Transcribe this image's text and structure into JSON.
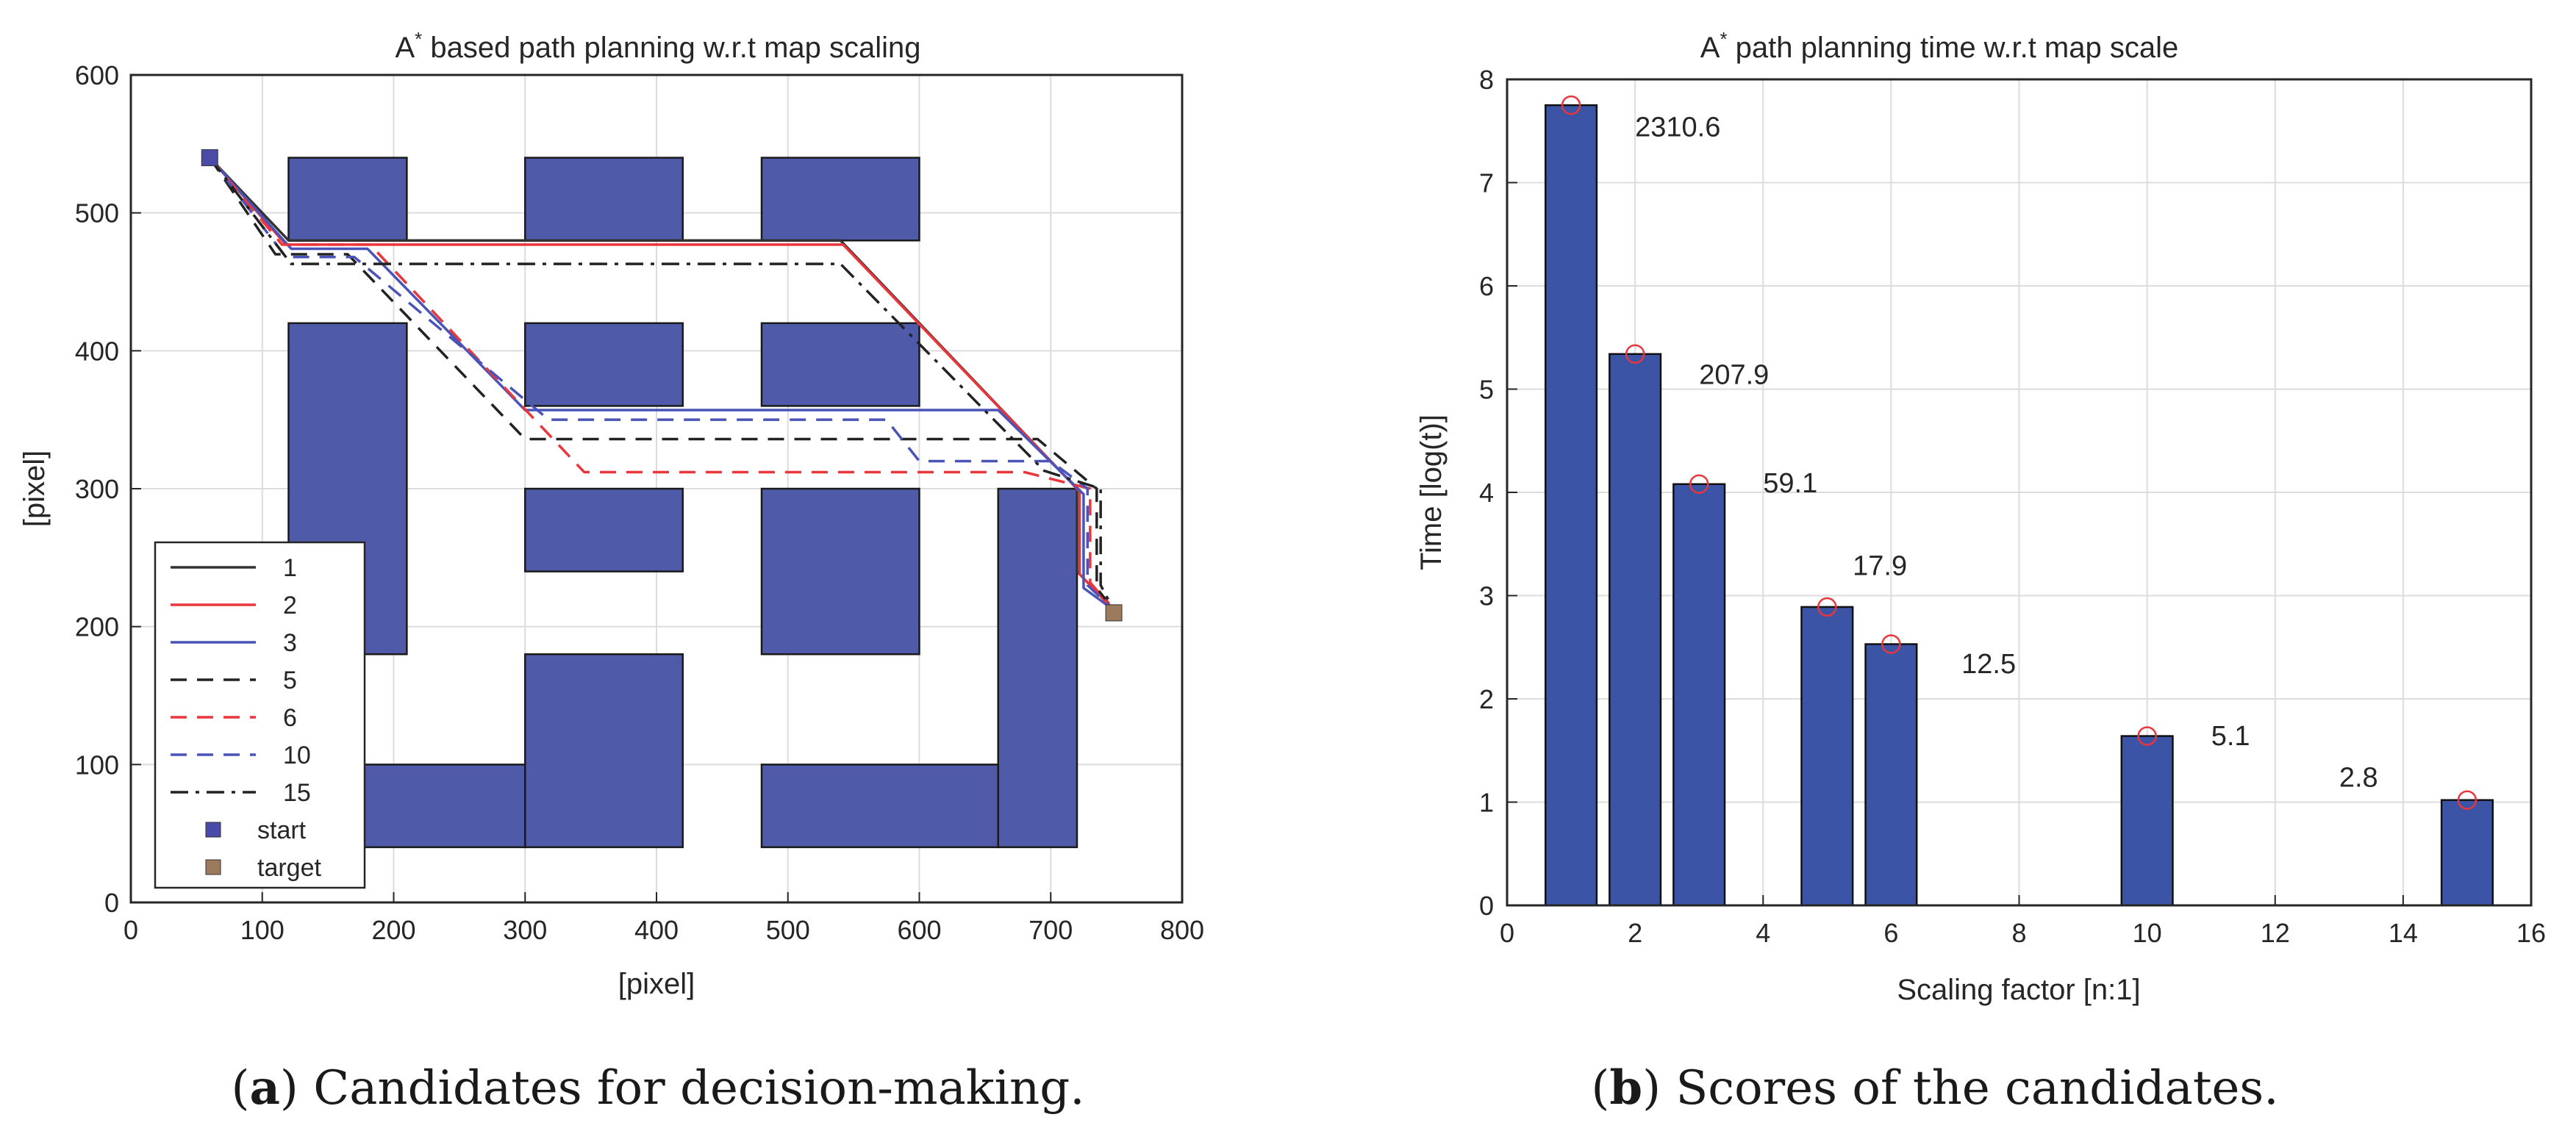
{
  "chart_data": [
    {
      "type": "line",
      "panel": "a",
      "title_prefix": "A",
      "title_sup": "*",
      "title_rest": " based path planning w.r.t map scaling",
      "xlabel": "[pixel]",
      "ylabel": "[pixel]",
      "xlim": [
        0,
        800
      ],
      "ylim": [
        0,
        600
      ],
      "xticks": [
        "0",
        "100",
        "200",
        "300",
        "400",
        "500",
        "600",
        "700",
        "800"
      ],
      "yticks": [
        "0",
        "100",
        "200",
        "300",
        "400",
        "500",
        "600"
      ],
      "grid": true,
      "legend_position": "bottom-left",
      "obstacle_color": "#4f5aa8",
      "obstacles": [
        [
          [
            120,
            480
          ],
          [
            210,
            480
          ],
          [
            210,
            540
          ],
          [
            120,
            540
          ]
        ],
        [
          [
            300,
            480
          ],
          [
            420,
            480
          ],
          [
            420,
            540
          ],
          [
            300,
            540
          ]
        ],
        [
          [
            480,
            480
          ],
          [
            600,
            480
          ],
          [
            600,
            540
          ],
          [
            480,
            540
          ]
        ],
        [
          [
            120,
            180
          ],
          [
            210,
            180
          ],
          [
            210,
            420
          ],
          [
            120,
            420
          ]
        ],
        [
          [
            300,
            360
          ],
          [
            420,
            360
          ],
          [
            420,
            420
          ],
          [
            300,
            420
          ]
        ],
        [
          [
            480,
            360
          ],
          [
            600,
            360
          ],
          [
            600,
            420
          ],
          [
            480,
            420
          ]
        ],
        [
          [
            300,
            240
          ],
          [
            420,
            240
          ],
          [
            420,
            300
          ],
          [
            300,
            300
          ]
        ],
        [
          [
            480,
            180
          ],
          [
            600,
            180
          ],
          [
            600,
            300
          ],
          [
            480,
            300
          ]
        ],
        [
          [
            660,
            40
          ],
          [
            720,
            40
          ],
          [
            720,
            300
          ],
          [
            660,
            300
          ]
        ],
        [
          [
            480,
            40
          ],
          [
            660,
            40
          ],
          [
            660,
            100
          ],
          [
            480,
            100
          ]
        ],
        [
          [
            300,
            40
          ],
          [
            420,
            40
          ],
          [
            420,
            180
          ],
          [
            300,
            180
          ]
        ],
        [
          [
            120,
            40
          ],
          [
            300,
            40
          ],
          [
            300,
            100
          ],
          [
            120,
            100
          ]
        ]
      ],
      "series": [
        {
          "name": "1",
          "color": "#333333",
          "dash": "solid",
          "points": [
            [
              60,
              540
            ],
            [
              120,
              480
            ],
            [
              540,
              480
            ],
            [
              720,
              300
            ],
            [
              720,
              240
            ],
            [
              748,
              212
            ]
          ]
        },
        {
          "name": "2",
          "color": "#e8363c",
          "dash": "solid",
          "points": [
            [
              60,
              540
            ],
            [
              118,
              477
            ],
            [
              542,
              477
            ],
            [
              722,
              298
            ],
            [
              722,
              238
            ],
            [
              748,
              212
            ]
          ]
        },
        {
          "name": "3",
          "color": "#4a54b8",
          "dash": "solid",
          "points": [
            [
              60,
              540
            ],
            [
              122,
              474
            ],
            [
              180,
              474
            ],
            [
              300,
              357
            ],
            [
              660,
              357
            ],
            [
              725,
              296
            ],
            [
              725,
              228
            ],
            [
              748,
              212
            ]
          ]
        },
        {
          "name": "5",
          "color": "#222222",
          "dash": "dash",
          "points": [
            [
              60,
              540
            ],
            [
              110,
              470
            ],
            [
              165,
              470
            ],
            [
              300,
              336
            ],
            [
              690,
              336
            ],
            [
              735,
              300
            ],
            [
              735,
              228
            ],
            [
              748,
              212
            ]
          ]
        },
        {
          "name": "6",
          "color": "#e8363c",
          "dash": "dash",
          "points": [
            [
              60,
              540
            ],
            [
              115,
              477
            ],
            [
              182,
              477
            ],
            [
              345,
              312
            ],
            [
              680,
              312
            ],
            [
              730,
              300
            ],
            [
              730,
              232
            ],
            [
              748,
              212
            ]
          ]
        },
        {
          "name": "10",
          "color": "#4a54b8",
          "dash": "dash",
          "points": [
            [
              60,
              540
            ],
            [
              118,
              468
            ],
            [
              170,
              468
            ],
            [
              318,
              350
            ],
            [
              575,
              350
            ],
            [
              600,
              320
            ],
            [
              700,
              320
            ],
            [
              728,
              300
            ],
            [
              728,
              230
            ],
            [
              748,
              212
            ]
          ]
        },
        {
          "name": "15",
          "color": "#222222",
          "dash": "dashdot",
          "points": [
            [
              60,
              540
            ],
            [
              122,
              463
            ],
            [
              540,
              463
            ],
            [
              695,
              313
            ],
            [
              738,
              300
            ],
            [
              738,
              230
            ],
            [
              748,
              212
            ]
          ]
        }
      ],
      "markers": [
        {
          "name": "start",
          "x": 60,
          "y": 540,
          "color": "#4a4aa8"
        },
        {
          "name": "target",
          "x": 748,
          "y": 210,
          "color": "#9c7a5c"
        }
      ]
    },
    {
      "type": "bar",
      "panel": "b",
      "title_prefix": "A",
      "title_sup": "*",
      "title_rest": " path planning time w.r.t map scale",
      "xlabel": "Scaling factor [n:1]",
      "ylabel": "Time [log(t)]",
      "xlim": [
        0,
        16
      ],
      "ylim": [
        0,
        8
      ],
      "xticks": [
        "0",
        "2",
        "4",
        "6",
        "8",
        "10",
        "12",
        "14",
        "16"
      ],
      "yticks": [
        "0",
        "1",
        "2",
        "3",
        "4",
        "5",
        "6",
        "7",
        "8"
      ],
      "grid": true,
      "bar_color": "#3b54a5",
      "marker_color": "#e8363c",
      "x": [
        1,
        2,
        3,
        5,
        6,
        10,
        15
      ],
      "values": [
        7.75,
        5.34,
        4.08,
        2.89,
        2.53,
        1.64,
        1.02
      ],
      "annotations": [
        {
          "text": "2310.6",
          "x": 2.0,
          "y": 7.45
        },
        {
          "text": "207.9",
          "x": 3.0,
          "y": 5.05
        },
        {
          "text": "59.1",
          "x": 4.0,
          "y": 4.0
        },
        {
          "text": "17.9",
          "x": 5.4,
          "y": 3.2
        },
        {
          "text": "12.5",
          "x": 7.1,
          "y": 2.25
        },
        {
          "text": "5.1",
          "x": 11.0,
          "y": 1.55
        },
        {
          "text": "2.8",
          "x": 13.0,
          "y": 1.15
        }
      ]
    }
  ],
  "captions": [
    {
      "label": "a",
      "text": " Candidates for decision-making."
    },
    {
      "label": "b",
      "text": " Scores of the candidates."
    }
  ]
}
